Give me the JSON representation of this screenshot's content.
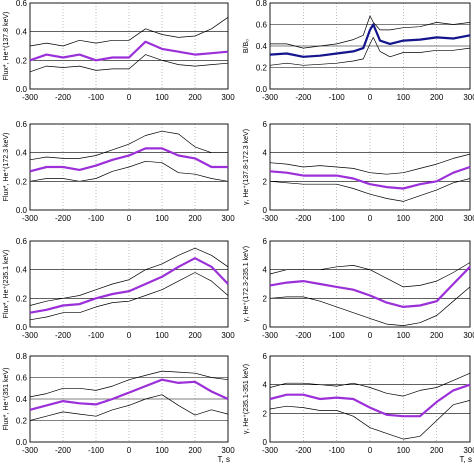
{
  "colors": {
    "mean": "#9b30d9",
    "mean_blue": "#14148c",
    "band": "#000000",
    "grid": "#000000"
  },
  "chart_data": [
    {
      "id": "left-1",
      "type": "line",
      "ylabel": "Flux*, He⁺(137.8 keV)",
      "xlim": [
        -300,
        300
      ],
      "ylim": [
        0.0,
        0.6
      ],
      "xticks": [
        -300,
        -200,
        -100,
        0,
        100,
        200,
        300
      ],
      "yticks": [
        0.0,
        0.2,
        0.4,
        0.6
      ],
      "show_xticks": true,
      "xlabel": "",
      "x": [
        -300,
        -250,
        -200,
        -150,
        -100,
        -50,
        0,
        50,
        100,
        150,
        200,
        250,
        300
      ],
      "series": [
        {
          "role": "mean",
          "values": [
            0.2,
            0.24,
            0.22,
            0.24,
            0.2,
            0.22,
            0.22,
            0.33,
            0.28,
            0.26,
            0.24,
            0.25,
            0.26
          ]
        },
        {
          "role": "upper",
          "values": [
            0.3,
            0.32,
            0.3,
            0.34,
            0.32,
            0.34,
            0.34,
            0.42,
            0.38,
            0.36,
            0.37,
            0.42,
            0.5
          ]
        },
        {
          "role": "lower",
          "values": [
            0.12,
            0.16,
            0.15,
            0.16,
            0.13,
            0.14,
            0.14,
            0.24,
            0.2,
            0.17,
            0.16,
            0.17,
            0.18
          ]
        }
      ]
    },
    {
      "id": "right-1",
      "type": "line",
      "ylabel": "B/B₀",
      "xlim": [
        -300,
        300
      ],
      "ylim": [
        0.0,
        0.8
      ],
      "xticks": [
        -300,
        -200,
        -100,
        0,
        100,
        200,
        300
      ],
      "yticks": [
        0.0,
        0.2,
        0.4,
        0.6,
        0.8
      ],
      "show_xticks": true,
      "xlabel": "",
      "x": [
        -300,
        -250,
        -200,
        -150,
        -100,
        -50,
        -20,
        0,
        10,
        30,
        60,
        100,
        150,
        200,
        250,
        300
      ],
      "series": [
        {
          "role": "mean",
          "values": [
            0.32,
            0.33,
            0.3,
            0.31,
            0.33,
            0.35,
            0.38,
            0.55,
            0.6,
            0.45,
            0.42,
            0.45,
            0.46,
            0.48,
            0.47,
            0.5
          ]
        },
        {
          "role": "upper",
          "values": [
            0.42,
            0.42,
            0.38,
            0.4,
            0.42,
            0.46,
            0.5,
            0.68,
            0.62,
            0.55,
            0.55,
            0.57,
            0.58,
            0.62,
            0.6,
            0.62
          ]
        },
        {
          "role": "lower",
          "values": [
            0.22,
            0.24,
            0.22,
            0.23,
            0.24,
            0.26,
            0.28,
            0.42,
            0.48,
            0.35,
            0.3,
            0.34,
            0.34,
            0.36,
            0.36,
            0.38
          ]
        }
      ]
    },
    {
      "id": "left-2",
      "type": "line",
      "ylabel": "Flux*, He⁺(172.3 keV)",
      "xlim": [
        -300,
        300
      ],
      "ylim": [
        0.0,
        0.6
      ],
      "xticks": [
        -300,
        -200,
        -100,
        0,
        100,
        200,
        300
      ],
      "yticks": [
        0.0,
        0.2,
        0.4,
        0.6
      ],
      "show_xticks": true,
      "xlabel": "",
      "x": [
        -300,
        -250,
        -200,
        -150,
        -100,
        -50,
        0,
        50,
        100,
        150,
        200,
        250,
        300
      ],
      "series": [
        {
          "role": "mean",
          "values": [
            0.27,
            0.3,
            0.3,
            0.28,
            0.31,
            0.35,
            0.38,
            0.43,
            0.43,
            0.38,
            0.36,
            0.3,
            0.3
          ]
        },
        {
          "role": "upper",
          "values": [
            0.35,
            0.37,
            0.36,
            0.36,
            0.38,
            0.42,
            0.46,
            0.52,
            0.55,
            0.53,
            0.44,
            0.4,
            0.4
          ]
        },
        {
          "role": "lower",
          "values": [
            0.2,
            0.22,
            0.22,
            0.2,
            0.22,
            0.27,
            0.3,
            0.34,
            0.33,
            0.26,
            0.25,
            0.22,
            0.2
          ]
        }
      ]
    },
    {
      "id": "right-2",
      "type": "line",
      "ylabel": "γ, He⁺(137.8-172.3 keV)",
      "xlim": [
        -300,
        300
      ],
      "ylim": [
        0,
        6
      ],
      "xticks": [
        -300,
        -200,
        -100,
        0,
        100,
        200,
        300
      ],
      "yticks": [
        0,
        2,
        4,
        6
      ],
      "show_xticks": true,
      "xlabel": "",
      "x": [
        -300,
        -250,
        -200,
        -150,
        -100,
        -50,
        0,
        50,
        100,
        150,
        200,
        250,
        300
      ],
      "series": [
        {
          "role": "mean",
          "values": [
            2.7,
            2.6,
            2.4,
            2.4,
            2.4,
            2.2,
            1.8,
            1.6,
            1.5,
            1.8,
            2.0,
            2.6,
            3.0
          ]
        },
        {
          "role": "upper",
          "values": [
            3.3,
            3.2,
            3.0,
            3.1,
            3.0,
            2.9,
            2.6,
            2.5,
            2.6,
            2.9,
            3.2,
            3.6,
            3.9
          ]
        },
        {
          "role": "lower",
          "values": [
            2.0,
            1.9,
            1.8,
            1.8,
            1.8,
            1.5,
            1.1,
            0.8,
            0.6,
            1.0,
            1.4,
            1.9,
            2.2
          ]
        }
      ]
    },
    {
      "id": "left-3",
      "type": "line",
      "ylabel": "Flux*, He⁺(235.1 keV)",
      "xlim": [
        -300,
        300
      ],
      "ylim": [
        0.0,
        0.6
      ],
      "xticks": [
        -300,
        -200,
        -100,
        0,
        100,
        200,
        300
      ],
      "yticks": [
        0.0,
        0.2,
        0.4,
        0.6
      ],
      "show_xticks": true,
      "xlabel": "",
      "x": [
        -300,
        -250,
        -200,
        -150,
        -100,
        -50,
        0,
        50,
        100,
        150,
        200,
        250,
        300
      ],
      "series": [
        {
          "role": "mean",
          "values": [
            0.1,
            0.12,
            0.15,
            0.16,
            0.2,
            0.23,
            0.25,
            0.3,
            0.35,
            0.42,
            0.48,
            0.42,
            0.3
          ]
        },
        {
          "role": "upper",
          "values": [
            0.15,
            0.18,
            0.2,
            0.22,
            0.26,
            0.3,
            0.33,
            0.4,
            0.44,
            0.5,
            0.55,
            0.5,
            0.42
          ]
        },
        {
          "role": "lower",
          "values": [
            0.05,
            0.07,
            0.1,
            0.1,
            0.14,
            0.17,
            0.18,
            0.22,
            0.26,
            0.32,
            0.38,
            0.32,
            0.22
          ]
        }
      ]
    },
    {
      "id": "right-3",
      "type": "line",
      "ylabel": "γ, He⁺(172.3-235.1 keV)",
      "xlim": [
        -300,
        300
      ],
      "ylim": [
        0,
        6
      ],
      "xticks": [
        -300,
        -200,
        -100,
        0,
        100,
        200,
        300
      ],
      "yticks": [
        0,
        2,
        4,
        6
      ],
      "show_xticks": true,
      "xlabel": "",
      "x": [
        -300,
        -250,
        -200,
        -150,
        -100,
        -50,
        0,
        50,
        100,
        150,
        200,
        250,
        300
      ],
      "series": [
        {
          "role": "mean",
          "values": [
            2.9,
            3.1,
            3.2,
            3.0,
            2.8,
            2.6,
            2.2,
            1.7,
            1.4,
            1.5,
            1.8,
            3.0,
            4.2
          ]
        },
        {
          "role": "upper",
          "values": [
            3.7,
            4.0,
            4.0,
            4.0,
            4.2,
            4.3,
            4.0,
            3.4,
            2.8,
            2.9,
            3.2,
            3.8,
            4.5
          ]
        },
        {
          "role": "lower",
          "values": [
            2.0,
            2.1,
            2.1,
            1.8,
            1.4,
            1.0,
            0.6,
            0.2,
            0.1,
            0.3,
            0.8,
            1.8,
            2.8
          ]
        }
      ]
    },
    {
      "id": "left-4",
      "type": "line",
      "ylabel": "Flux*, He⁺(351 keV)",
      "xlim": [
        -300,
        300
      ],
      "ylim": [
        0.0,
        0.8
      ],
      "xticks": [
        -300,
        -200,
        -100,
        0,
        100,
        200,
        300
      ],
      "yticks": [
        0.0,
        0.2,
        0.4,
        0.6,
        0.8
      ],
      "show_xticks": true,
      "xlabel": "T, s",
      "x": [
        -300,
        -250,
        -200,
        -150,
        -100,
        -50,
        0,
        50,
        100,
        150,
        200,
        250,
        300
      ],
      "series": [
        {
          "role": "mean",
          "values": [
            0.3,
            0.34,
            0.38,
            0.36,
            0.35,
            0.4,
            0.46,
            0.52,
            0.58,
            0.55,
            0.56,
            0.47,
            0.4
          ]
        },
        {
          "role": "upper",
          "values": [
            0.42,
            0.45,
            0.5,
            0.5,
            0.48,
            0.52,
            0.58,
            0.62,
            0.66,
            0.65,
            0.64,
            0.6,
            0.58
          ]
        },
        {
          "role": "lower",
          "values": [
            0.2,
            0.24,
            0.28,
            0.26,
            0.24,
            0.3,
            0.34,
            0.4,
            0.44,
            0.34,
            0.25,
            0.3,
            0.26
          ]
        }
      ]
    },
    {
      "id": "right-4",
      "type": "line",
      "ylabel": "γ, He⁺(235.1-351 keV)",
      "xlim": [
        -300,
        300
      ],
      "ylim": [
        0,
        6
      ],
      "xticks": [
        -300,
        -200,
        -100,
        0,
        100,
        200,
        300
      ],
      "yticks": [
        0,
        2,
        4,
        6
      ],
      "show_xticks": true,
      "xlabel": "T, s",
      "x": [
        -300,
        -250,
        -200,
        -150,
        -100,
        -50,
        0,
        50,
        100,
        150,
        200,
        250,
        300
      ],
      "series": [
        {
          "role": "mean",
          "values": [
            3.0,
            3.3,
            3.3,
            3.0,
            3.1,
            3.0,
            2.4,
            1.9,
            1.8,
            1.8,
            2.8,
            3.6,
            4.0
          ]
        },
        {
          "role": "upper",
          "values": [
            3.8,
            4.1,
            4.1,
            4.0,
            3.9,
            4.1,
            3.8,
            3.4,
            3.2,
            3.6,
            3.8,
            4.3,
            4.8
          ]
        },
        {
          "role": "lower",
          "values": [
            2.3,
            2.5,
            2.4,
            2.2,
            2.2,
            1.8,
            1.0,
            0.6,
            0.2,
            0.4,
            1.5,
            2.6,
            2.9
          ]
        }
      ]
    }
  ]
}
